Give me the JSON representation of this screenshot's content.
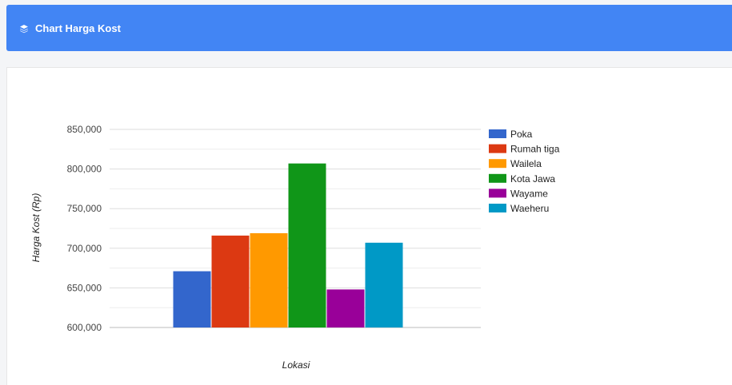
{
  "header": {
    "title": "Chart Harga Kost",
    "icon": "layers-icon"
  },
  "colors": {
    "header_bg": "#4285f4",
    "grid": "#dddddd",
    "minor_grid": "#eeeeee"
  },
  "chart_data": {
    "type": "bar",
    "categories": [
      ""
    ],
    "series": [
      {
        "name": "Poka",
        "values": [
          671000
        ],
        "color": "#3366cc"
      },
      {
        "name": "Rumah tiga",
        "values": [
          716000
        ],
        "color": "#dc3912"
      },
      {
        "name": "Wailela",
        "values": [
          719000
        ],
        "color": "#ff9900"
      },
      {
        "name": "Kota Jawa",
        "values": [
          807000
        ],
        "color": "#109618"
      },
      {
        "name": "Wayame",
        "values": [
          648000
        ],
        "color": "#990099"
      },
      {
        "name": "Waeheru",
        "values": [
          707000
        ],
        "color": "#0099c6"
      }
    ],
    "title": "",
    "xlabel": "Lokasi",
    "ylabel": "Harga Kost (Rp)",
    "ylim": [
      600000,
      850000
    ],
    "yticks": [
      "600,000",
      "650,000",
      "700,000",
      "750,000",
      "800,000",
      "850,000"
    ],
    "ytick_values": [
      600000,
      650000,
      700000,
      750000,
      800000,
      850000
    ],
    "grid": true,
    "legend": "right"
  }
}
